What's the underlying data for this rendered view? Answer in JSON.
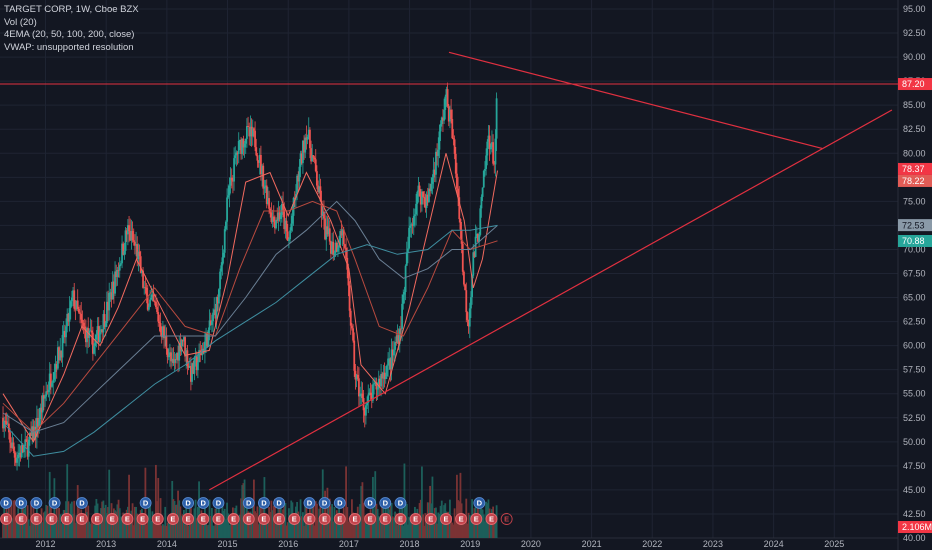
{
  "legend": {
    "title": "TARGET CORP, 1W, Cboe BZX",
    "vol": "Vol (20)",
    "ema": "4EMA (20, 50, 100, 200, close)",
    "vwap": "VWAP: unsupported resolution"
  },
  "colors": {
    "background": "#131722",
    "grid": "#1f2433",
    "up": "#26a69a",
    "down": "#ef5350",
    "volume_up": "#1c5f5a",
    "volume_down": "#7a3334",
    "trendline": "#e03040",
    "ema20": "#f26a5f",
    "ema50": "#b84a3f",
    "ema100": "#6a7f94",
    "ema200": "#3f8ea0",
    "dividend_marker": "#2d5fa8",
    "earnings_marker": "#c2424a"
  },
  "chart_data": {
    "type": "candlestick",
    "symbol": "TARGET CORP",
    "interval": "1W",
    "exchange": "Cboe BZX",
    "x_axis_years": [
      "2012",
      "2013",
      "2014",
      "2015",
      "2016",
      "2017",
      "2018",
      "2019",
      "2020",
      "2021",
      "2022",
      "2023",
      "2024",
      "2025"
    ],
    "y_ticks": [
      "95.00",
      "92.50",
      "90.00",
      "87.50",
      "85.00",
      "82.50",
      "80.00",
      "77.50",
      "75.00",
      "72.50",
      "70.00",
      "67.50",
      "65.00",
      "62.50",
      "60.00",
      "57.50",
      "55.00",
      "52.50",
      "50.00",
      "47.50",
      "45.00",
      "42.50",
      "40.00"
    ],
    "ylim": [
      40.0,
      95.0
    ],
    "price_labels": [
      {
        "value": "87.20",
        "bg": "#f23645",
        "fg": "#ffffff"
      },
      {
        "value": "78.37",
        "bg": "#f23645",
        "fg": "#ffffff"
      },
      {
        "value": "78.22",
        "bg": "#e25c56",
        "fg": "#ffffff"
      },
      {
        "value": "72.53",
        "bg": "#8a9aa8",
        "fg": "#131722"
      },
      {
        "value": "70.88",
        "bg": "#26a69a",
        "fg": "#ffffff"
      },
      {
        "value": "2.106M",
        "bg": "#f23645",
        "fg": "#ffffff"
      }
    ],
    "current_price": 87.2,
    "close_path": [
      [
        2011.3,
        52.5
      ],
      [
        2011.5,
        48.5
      ],
      [
        2011.7,
        49.5
      ],
      [
        2011.85,
        51.5
      ],
      [
        2012.0,
        55.0
      ],
      [
        2012.15,
        58.0
      ],
      [
        2012.3,
        60.5
      ],
      [
        2012.45,
        65.0
      ],
      [
        2012.6,
        62.0
      ],
      [
        2012.8,
        60.0
      ],
      [
        2013.0,
        63.5
      ],
      [
        2013.15,
        67.0
      ],
      [
        2013.35,
        72.0
      ],
      [
        2013.5,
        70.0
      ],
      [
        2013.65,
        65.0
      ],
      [
        2013.8,
        64.0
      ],
      [
        2014.0,
        60.0
      ],
      [
        2014.1,
        57.5
      ],
      [
        2014.25,
        61.0
      ],
      [
        2014.4,
        57.0
      ],
      [
        2014.55,
        59.0
      ],
      [
        2014.7,
        61.5
      ],
      [
        2014.85,
        65.0
      ],
      [
        2015.0,
        75.0
      ],
      [
        2015.15,
        80.0
      ],
      [
        2015.3,
        82.0
      ],
      [
        2015.45,
        81.5
      ],
      [
        2015.6,
        77.0
      ],
      [
        2015.75,
        73.0
      ],
      [
        2015.9,
        74.0
      ],
      [
        2016.0,
        70.5
      ],
      [
        2016.15,
        77.0
      ],
      [
        2016.3,
        82.5
      ],
      [
        2016.45,
        78.0
      ],
      [
        2016.6,
        72.0
      ],
      [
        2016.75,
        70.0
      ],
      [
        2016.9,
        72.0
      ],
      [
        2017.0,
        65.0
      ],
      [
        2017.1,
        57.0
      ],
      [
        2017.25,
        53.5
      ],
      [
        2017.4,
        55.0
      ],
      [
        2017.55,
        57.0
      ],
      [
        2017.7,
        58.5
      ],
      [
        2017.85,
        62.0
      ],
      [
        2018.0,
        72.0
      ],
      [
        2018.15,
        76.0
      ],
      [
        2018.3,
        75.0
      ],
      [
        2018.45,
        80.0
      ],
      [
        2018.6,
        86.0
      ],
      [
        2018.7,
        82.5
      ],
      [
        2018.82,
        74.0
      ],
      [
        2018.9,
        66.0
      ],
      [
        2018.97,
        62.5
      ],
      [
        2019.05,
        69.0
      ],
      [
        2019.15,
        72.5
      ],
      [
        2019.3,
        82.0
      ],
      [
        2019.4,
        79.0
      ],
      [
        2019.45,
        87.2
      ]
    ],
    "ema_lines": [
      {
        "name": "EMA20",
        "color": "#f26a5f",
        "points": [
          [
            2011.3,
            55
          ],
          [
            2011.8,
            50
          ],
          [
            2012.3,
            57
          ],
          [
            2012.6,
            62
          ],
          [
            2012.9,
            60
          ],
          [
            2013.2,
            64
          ],
          [
            2013.5,
            69
          ],
          [
            2013.9,
            64
          ],
          [
            2014.3,
            59
          ],
          [
            2014.7,
            59.5
          ],
          [
            2015.0,
            67
          ],
          [
            2015.3,
            77
          ],
          [
            2015.7,
            78
          ],
          [
            2016.0,
            73.5
          ],
          [
            2016.3,
            78
          ],
          [
            2016.7,
            73
          ],
          [
            2017.0,
            68
          ],
          [
            2017.2,
            58
          ],
          [
            2017.6,
            55
          ],
          [
            2018.0,
            64
          ],
          [
            2018.3,
            72
          ],
          [
            2018.6,
            80
          ],
          [
            2018.9,
            73
          ],
          [
            2019.05,
            66
          ],
          [
            2019.2,
            69
          ],
          [
            2019.45,
            78.2
          ]
        ]
      },
      {
        "name": "EMA50",
        "color": "#b84a3f",
        "points": [
          [
            2011.3,
            54
          ],
          [
            2011.8,
            51
          ],
          [
            2012.3,
            54
          ],
          [
            2012.8,
            58
          ],
          [
            2013.3,
            62
          ],
          [
            2013.8,
            66
          ],
          [
            2014.3,
            62
          ],
          [
            2014.8,
            61
          ],
          [
            2015.2,
            68
          ],
          [
            2015.6,
            74
          ],
          [
            2016.0,
            74
          ],
          [
            2016.4,
            75
          ],
          [
            2016.8,
            74
          ],
          [
            2017.1,
            69
          ],
          [
            2017.5,
            62
          ],
          [
            2017.9,
            61
          ],
          [
            2018.3,
            66
          ],
          [
            2018.7,
            72
          ],
          [
            2019.0,
            70
          ],
          [
            2019.45,
            70.9
          ]
        ]
      },
      {
        "name": "EMA100",
        "color": "#6a7f94",
        "points": [
          [
            2011.3,
            53
          ],
          [
            2011.8,
            51
          ],
          [
            2012.3,
            52
          ],
          [
            2012.8,
            55
          ],
          [
            2013.3,
            58
          ],
          [
            2013.8,
            61
          ],
          [
            2014.3,
            61
          ],
          [
            2014.8,
            61
          ],
          [
            2015.3,
            65
          ],
          [
            2015.8,
            69.5
          ],
          [
            2016.3,
            72
          ],
          [
            2016.8,
            75
          ],
          [
            2017.1,
            73
          ],
          [
            2017.5,
            69
          ],
          [
            2017.9,
            67
          ],
          [
            2018.3,
            68
          ],
          [
            2018.7,
            70
          ],
          [
            2019.0,
            70
          ],
          [
            2019.45,
            72.5
          ]
        ]
      },
      {
        "name": "EMA200",
        "color": "#3f8ea0",
        "points": [
          [
            2011.3,
            52
          ],
          [
            2011.8,
            48.5
          ],
          [
            2012.3,
            49
          ],
          [
            2012.8,
            51
          ],
          [
            2013.3,
            53.5
          ],
          [
            2013.8,
            56
          ],
          [
            2014.3,
            58
          ],
          [
            2014.8,
            60.5
          ],
          [
            2015.3,
            62.5
          ],
          [
            2015.8,
            64.5
          ],
          [
            2016.3,
            67
          ],
          [
            2016.8,
            69.5
          ],
          [
            2017.3,
            70.5
          ],
          [
            2017.8,
            69.5
          ],
          [
            2018.3,
            70
          ],
          [
            2018.7,
            72
          ],
          [
            2019.0,
            72
          ],
          [
            2019.45,
            72.5
          ]
        ]
      }
    ],
    "trendlines": [
      {
        "from": [
          2018.65,
          90.5
        ],
        "to": [
          2024.8,
          80.5
        ]
      },
      {
        "from": [
          2014.7,
          45.0
        ],
        "to": [
          2025.95,
          84.5
        ]
      }
    ],
    "horizontal_line": 87.2,
    "dividend_markers": {
      "label": "D",
      "x": [
        2011.35,
        2011.6,
        2011.85,
        2012.15,
        2012.6,
        2013.65,
        2014.35,
        2014.6,
        2014.85,
        2015.35,
        2015.6,
        2015.85,
        2016.35,
        2016.6,
        2016.85,
        2017.35,
        2017.6,
        2017.85,
        2019.15
      ]
    },
    "earnings_markers": {
      "label": "E",
      "x": [
        2011.35,
        2011.6,
        2011.85,
        2012.1,
        2012.35,
        2012.6,
        2012.85,
        2013.1,
        2013.35,
        2013.6,
        2013.85,
        2014.1,
        2014.35,
        2014.6,
        2014.85,
        2015.1,
        2015.35,
        2015.6,
        2015.85,
        2016.1,
        2016.35,
        2016.6,
        2016.85,
        2017.1,
        2017.35,
        2017.6,
        2017.85,
        2018.1,
        2018.35,
        2018.6,
        2018.85,
        2019.1,
        2019.35,
        2019.6
      ]
    }
  }
}
